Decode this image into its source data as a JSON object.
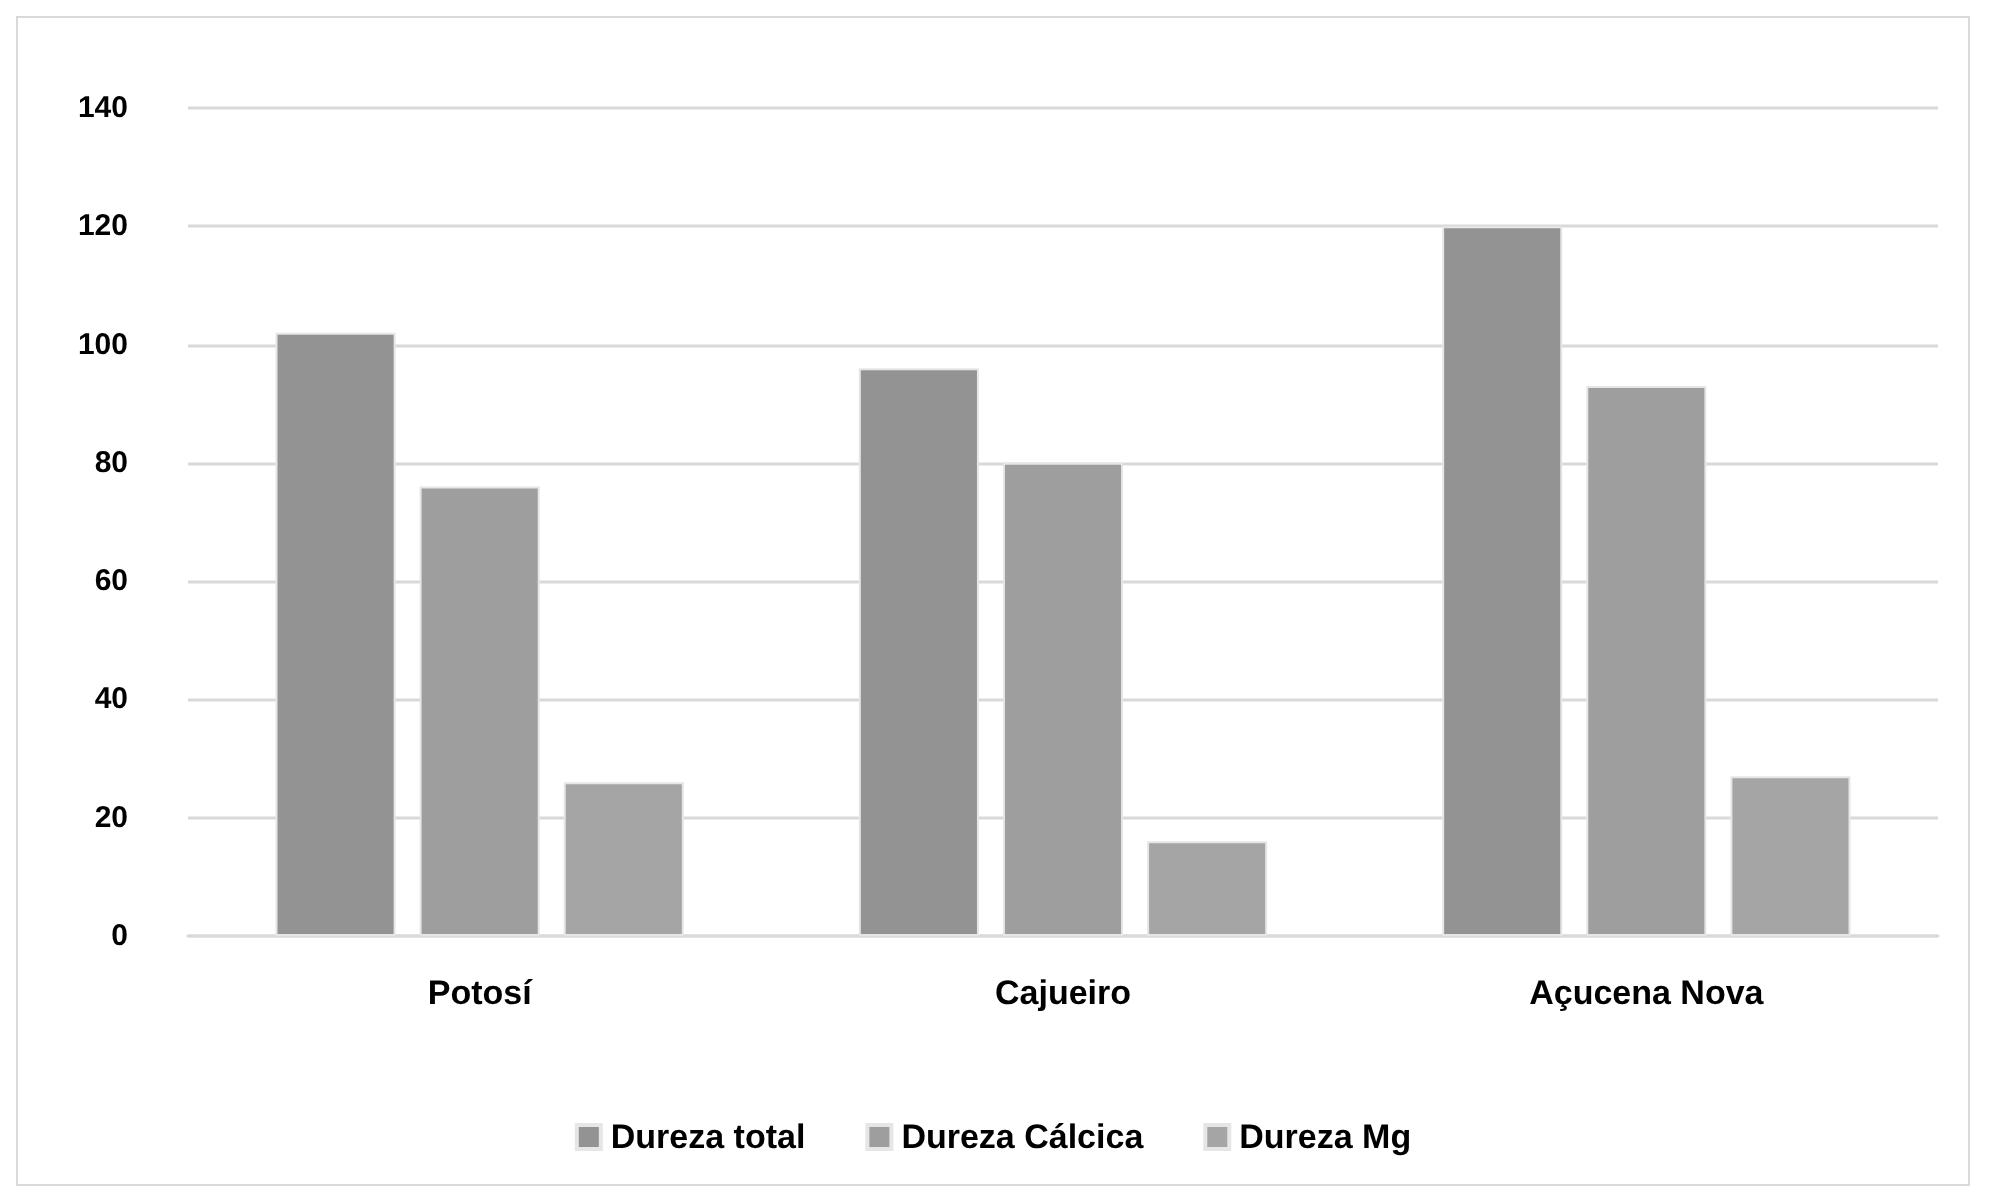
{
  "chart_data": {
    "type": "bar",
    "categories": [
      "Potosí",
      "Cajueiro",
      "Açucena Nova"
    ],
    "series": [
      {
        "name": "Dureza total",
        "color": "#939393",
        "values": [
          102,
          96,
          120
        ]
      },
      {
        "name": "Dureza Cálcica",
        "color": "#9e9e9e",
        "values": [
          76,
          80,
          93
        ]
      },
      {
        "name": "Dureza Mg",
        "color": "#a5a5a5",
        "values": [
          26,
          16,
          27
        ]
      }
    ],
    "ylim": [
      0,
      140
    ],
    "yticks": [
      0,
      20,
      40,
      60,
      80,
      100,
      120,
      140
    ],
    "grid": "y",
    "legend": "bottom"
  }
}
